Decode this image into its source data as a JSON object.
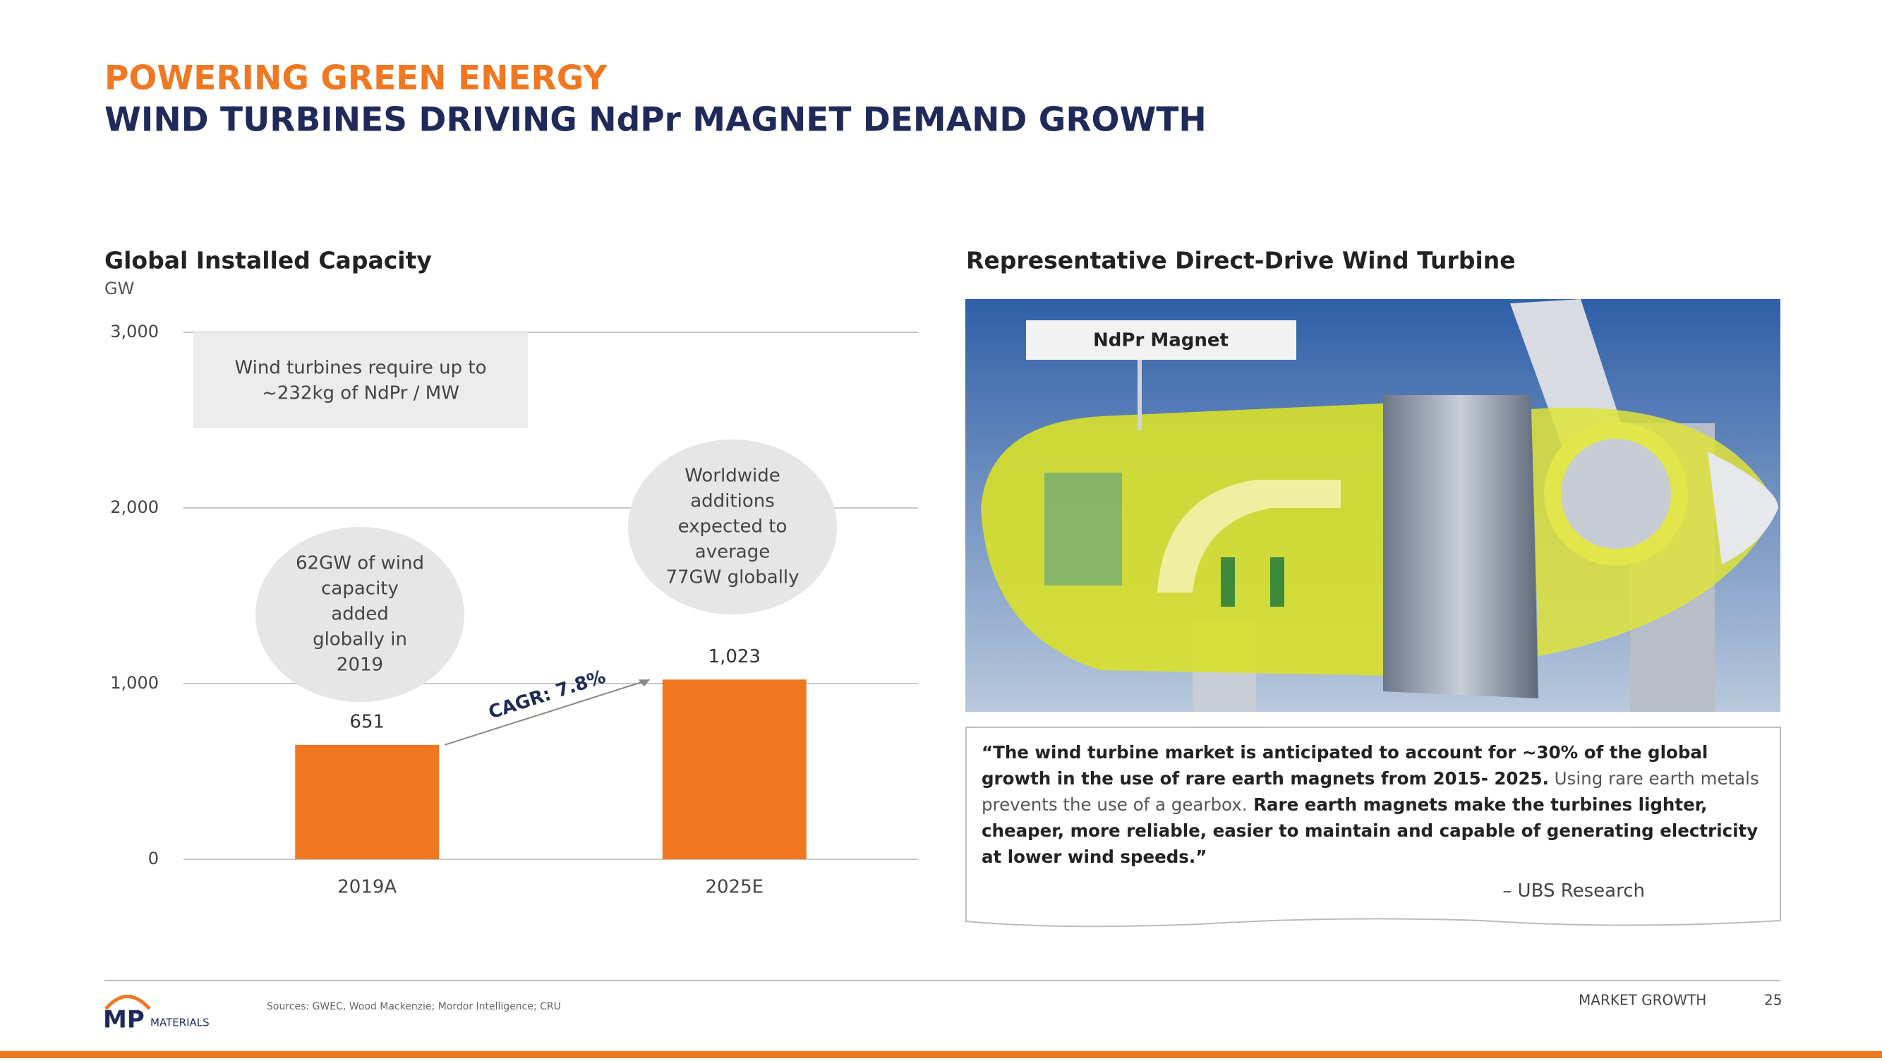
{
  "header": {
    "subtitle": "POWERING GREEN ENERGY",
    "title": "WIND TURBINES DRIVING NdPr MAGNET DEMAND GROWTH"
  },
  "chart_data": {
    "type": "bar",
    "title": "Global Installed Capacity",
    "y_label": "GW",
    "categories": [
      "2019A",
      "2025E"
    ],
    "values": [
      651,
      1023
    ],
    "value_labels": [
      "651",
      "1,023"
    ],
    "color": "#f07822",
    "ylim": [
      0,
      3000
    ],
    "yticks": [
      0,
      {
        "value": 1000,
        "label": "1,000"
      },
      {
        "value": 2000,
        "label": "2,000"
      },
      {
        "value": 3000,
        "label": "3,000"
      }
    ],
    "grid": true,
    "note_box": [
      "Wind turbines require up to",
      "~232kg of NdPr / MW"
    ],
    "bubble_left": [
      "62GW of wind",
      "capacity",
      "added",
      "globally in",
      "2019"
    ],
    "bubble_right": [
      "Worldwide",
      "additions",
      "expected to",
      "average",
      "77GW globally"
    ],
    "arrow_label": "CAGR: 7.8%"
  },
  "turbine": {
    "title": "Representative Direct-Drive Wind Turbine",
    "magnet_label": "NdPr Magnet"
  },
  "quote": {
    "segments": [
      {
        "text": "“The wind turbine market is anticipated to account for ~30% of the global growth in the use of rare earth magnets from 2015- 2025.",
        "bold": true
      },
      {
        "text": " Using rare earth metals prevents the use of a gearbox.",
        "bold": false
      },
      {
        "text": " Rare earth magnets make the turbines lighter, cheaper, more reliable, easier to maintain and capable of generating electricity at lower wind speeds.”",
        "bold": true
      }
    ],
    "attribution": "– UBS Research"
  },
  "footer": {
    "logo_mark": "MP",
    "logo_text": "MATERIALS",
    "sources": "Sources: GWEC, Wood Mackenzie; Mordor Intelligence; CRU",
    "section": "MARKET GROWTH",
    "page": "25"
  }
}
